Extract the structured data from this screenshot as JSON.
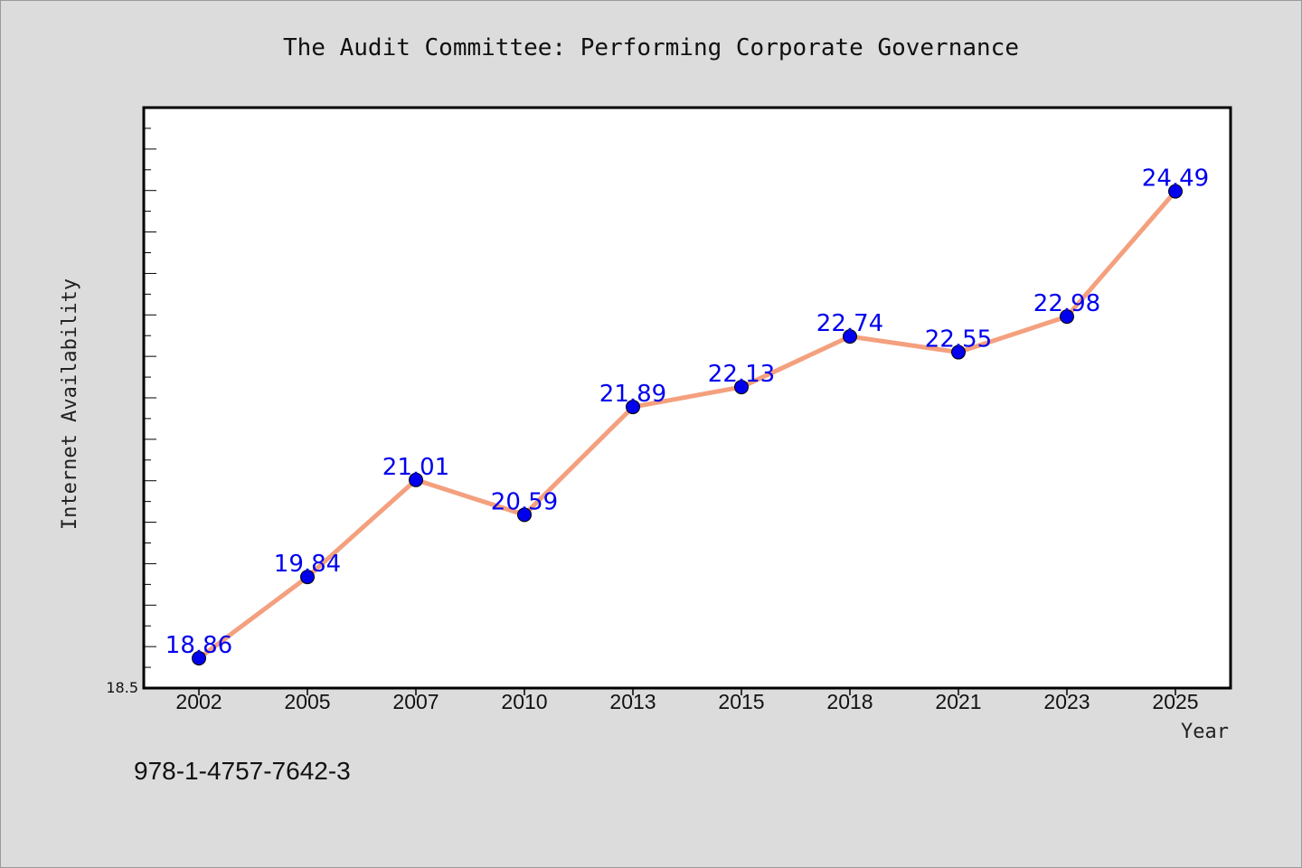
{
  "footer": "978-1-4757-7642-3",
  "chart_data": {
    "type": "line",
    "title": "The Audit Committee: Performing Corporate Governance",
    "xlabel": "Year",
    "ylabel": "Internet Availability",
    "categories": [
      "2002",
      "2005",
      "2007",
      "2010",
      "2013",
      "2015",
      "2018",
      "2021",
      "2023",
      "2025"
    ],
    "series": [
      {
        "values": [
          18.86,
          19.84,
          21.01,
          20.59,
          21.89,
          22.13,
          22.74,
          22.55,
          22.98,
          24.49
        ],
        "color": "#f4a07e",
        "marker_color": "#0000ee"
      }
    ],
    "data_labels": [
      "18.86",
      "19.84",
      "21.01",
      "20.59",
      "21.89",
      "22.13",
      "22.74",
      "22.55",
      "22.98",
      "24.49"
    ],
    "ylim": [
      18.5,
      25.5
    ],
    "y_tick_labels": [
      "18.5"
    ],
    "label_color": "#0000ee",
    "grid": false,
    "legend": "none"
  }
}
